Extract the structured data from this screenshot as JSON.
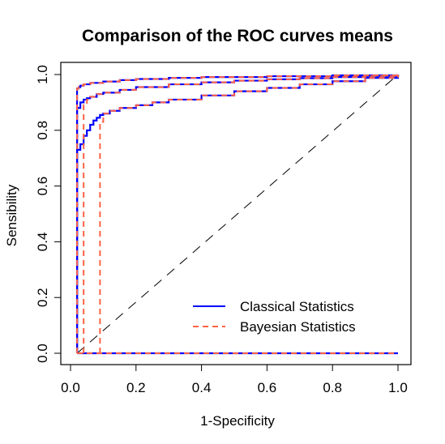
{
  "chart_data": {
    "type": "line",
    "title": "Comparison of the ROC curves means",
    "xlabel": "1-Specificity",
    "ylabel": "Sensibility",
    "xlim": [
      0.0,
      1.0
    ],
    "ylim": [
      0.0,
      1.0
    ],
    "x_ticks": [
      "0.0",
      "0.2",
      "0.4",
      "0.6",
      "0.8",
      "1.0"
    ],
    "y_ticks": [
      "0.0",
      "0.2",
      "0.4",
      "0.6",
      "0.8",
      "1.0"
    ],
    "grid": false,
    "legend_position": "bottom-right",
    "reference_line": {
      "style": "longdash",
      "color": "#000000",
      "from": [
        0.02,
        0.0
      ],
      "to": [
        1.0,
        1.0
      ]
    },
    "series": [
      {
        "name": "Classical Statistics",
        "color": "#0000ff",
        "style": "solid",
        "curves": [
          {
            "x": [
              0.02,
              0.02,
              0.025,
              0.03,
              0.04,
              0.06,
              0.1,
              0.15,
              0.2,
              0.3,
              0.4,
              0.6,
              0.8,
              1.0
            ],
            "y": [
              0.0,
              0.95,
              0.955,
              0.96,
              0.965,
              0.97,
              0.975,
              0.98,
              0.984,
              0.988,
              0.991,
              0.994,
              0.997,
              1.0
            ]
          },
          {
            "x": [
              0.02,
              0.02,
              0.03,
              0.04,
              0.05,
              0.06,
              0.08,
              0.1,
              0.15,
              0.2,
              0.3,
              0.4,
              0.5,
              0.6,
              0.7,
              0.8,
              0.9,
              1.0
            ],
            "y": [
              0.0,
              0.88,
              0.9,
              0.91,
              0.915,
              0.92,
              0.93,
              0.935,
              0.945,
              0.955,
              0.965,
              0.972,
              0.978,
              0.983,
              0.987,
              0.991,
              0.995,
              1.0
            ]
          },
          {
            "x": [
              0.02,
              0.02,
              0.03,
              0.04,
              0.05,
              0.06,
              0.07,
              0.08,
              0.09,
              0.1,
              0.12,
              0.15,
              0.2,
              0.25,
              0.3,
              0.4,
              0.5,
              0.6,
              0.7,
              0.8,
              0.9,
              1.0
            ],
            "y": [
              0.0,
              0.73,
              0.75,
              0.78,
              0.8,
              0.82,
              0.835,
              0.845,
              0.855,
              0.86,
              0.87,
              0.88,
              0.89,
              0.9,
              0.91,
              0.925,
              0.94,
              0.952,
              0.965,
              0.976,
              0.988,
              1.0
            ]
          },
          {
            "x": [
              0.02,
              1.0
            ],
            "y": [
              0.0,
              0.0
            ]
          }
        ]
      },
      {
        "name": "Bayesian Statistics",
        "color": "#ff6347",
        "style": "dashed",
        "curves": [
          {
            "x": [
              0.02,
              0.02,
              0.025,
              0.03,
              0.04,
              0.06,
              0.1,
              0.15,
              0.2,
              0.3,
              0.4,
              0.6,
              0.8,
              1.0
            ],
            "y": [
              0.0,
              0.95,
              0.955,
              0.96,
              0.965,
              0.97,
              0.975,
              0.98,
              0.984,
              0.988,
              0.991,
              0.994,
              0.997,
              1.0
            ]
          },
          {
            "x": [
              0.04,
              0.04,
              0.05,
              0.06,
              0.08,
              0.1,
              0.15,
              0.2,
              0.3,
              0.4,
              0.5,
              0.6,
              0.7,
              0.8,
              0.9,
              1.0
            ],
            "y": [
              0.0,
              0.89,
              0.91,
              0.92,
              0.93,
              0.935,
              0.945,
              0.955,
              0.965,
              0.972,
              0.978,
              0.983,
              0.987,
              0.991,
              0.995,
              1.0
            ]
          },
          {
            "x": [
              0.09,
              0.09,
              0.1,
              0.12,
              0.15,
              0.2,
              0.25,
              0.3,
              0.4,
              0.5,
              0.6,
              0.7,
              0.8,
              0.9,
              1.0
            ],
            "y": [
              0.0,
              0.83,
              0.86,
              0.87,
              0.88,
              0.89,
              0.9,
              0.91,
              0.925,
              0.94,
              0.952,
              0.965,
              0.976,
              0.988,
              1.0
            ]
          },
          {
            "x": [
              0.02,
              1.0
            ],
            "y": [
              0.0,
              0.0
            ]
          }
        ]
      }
    ]
  }
}
